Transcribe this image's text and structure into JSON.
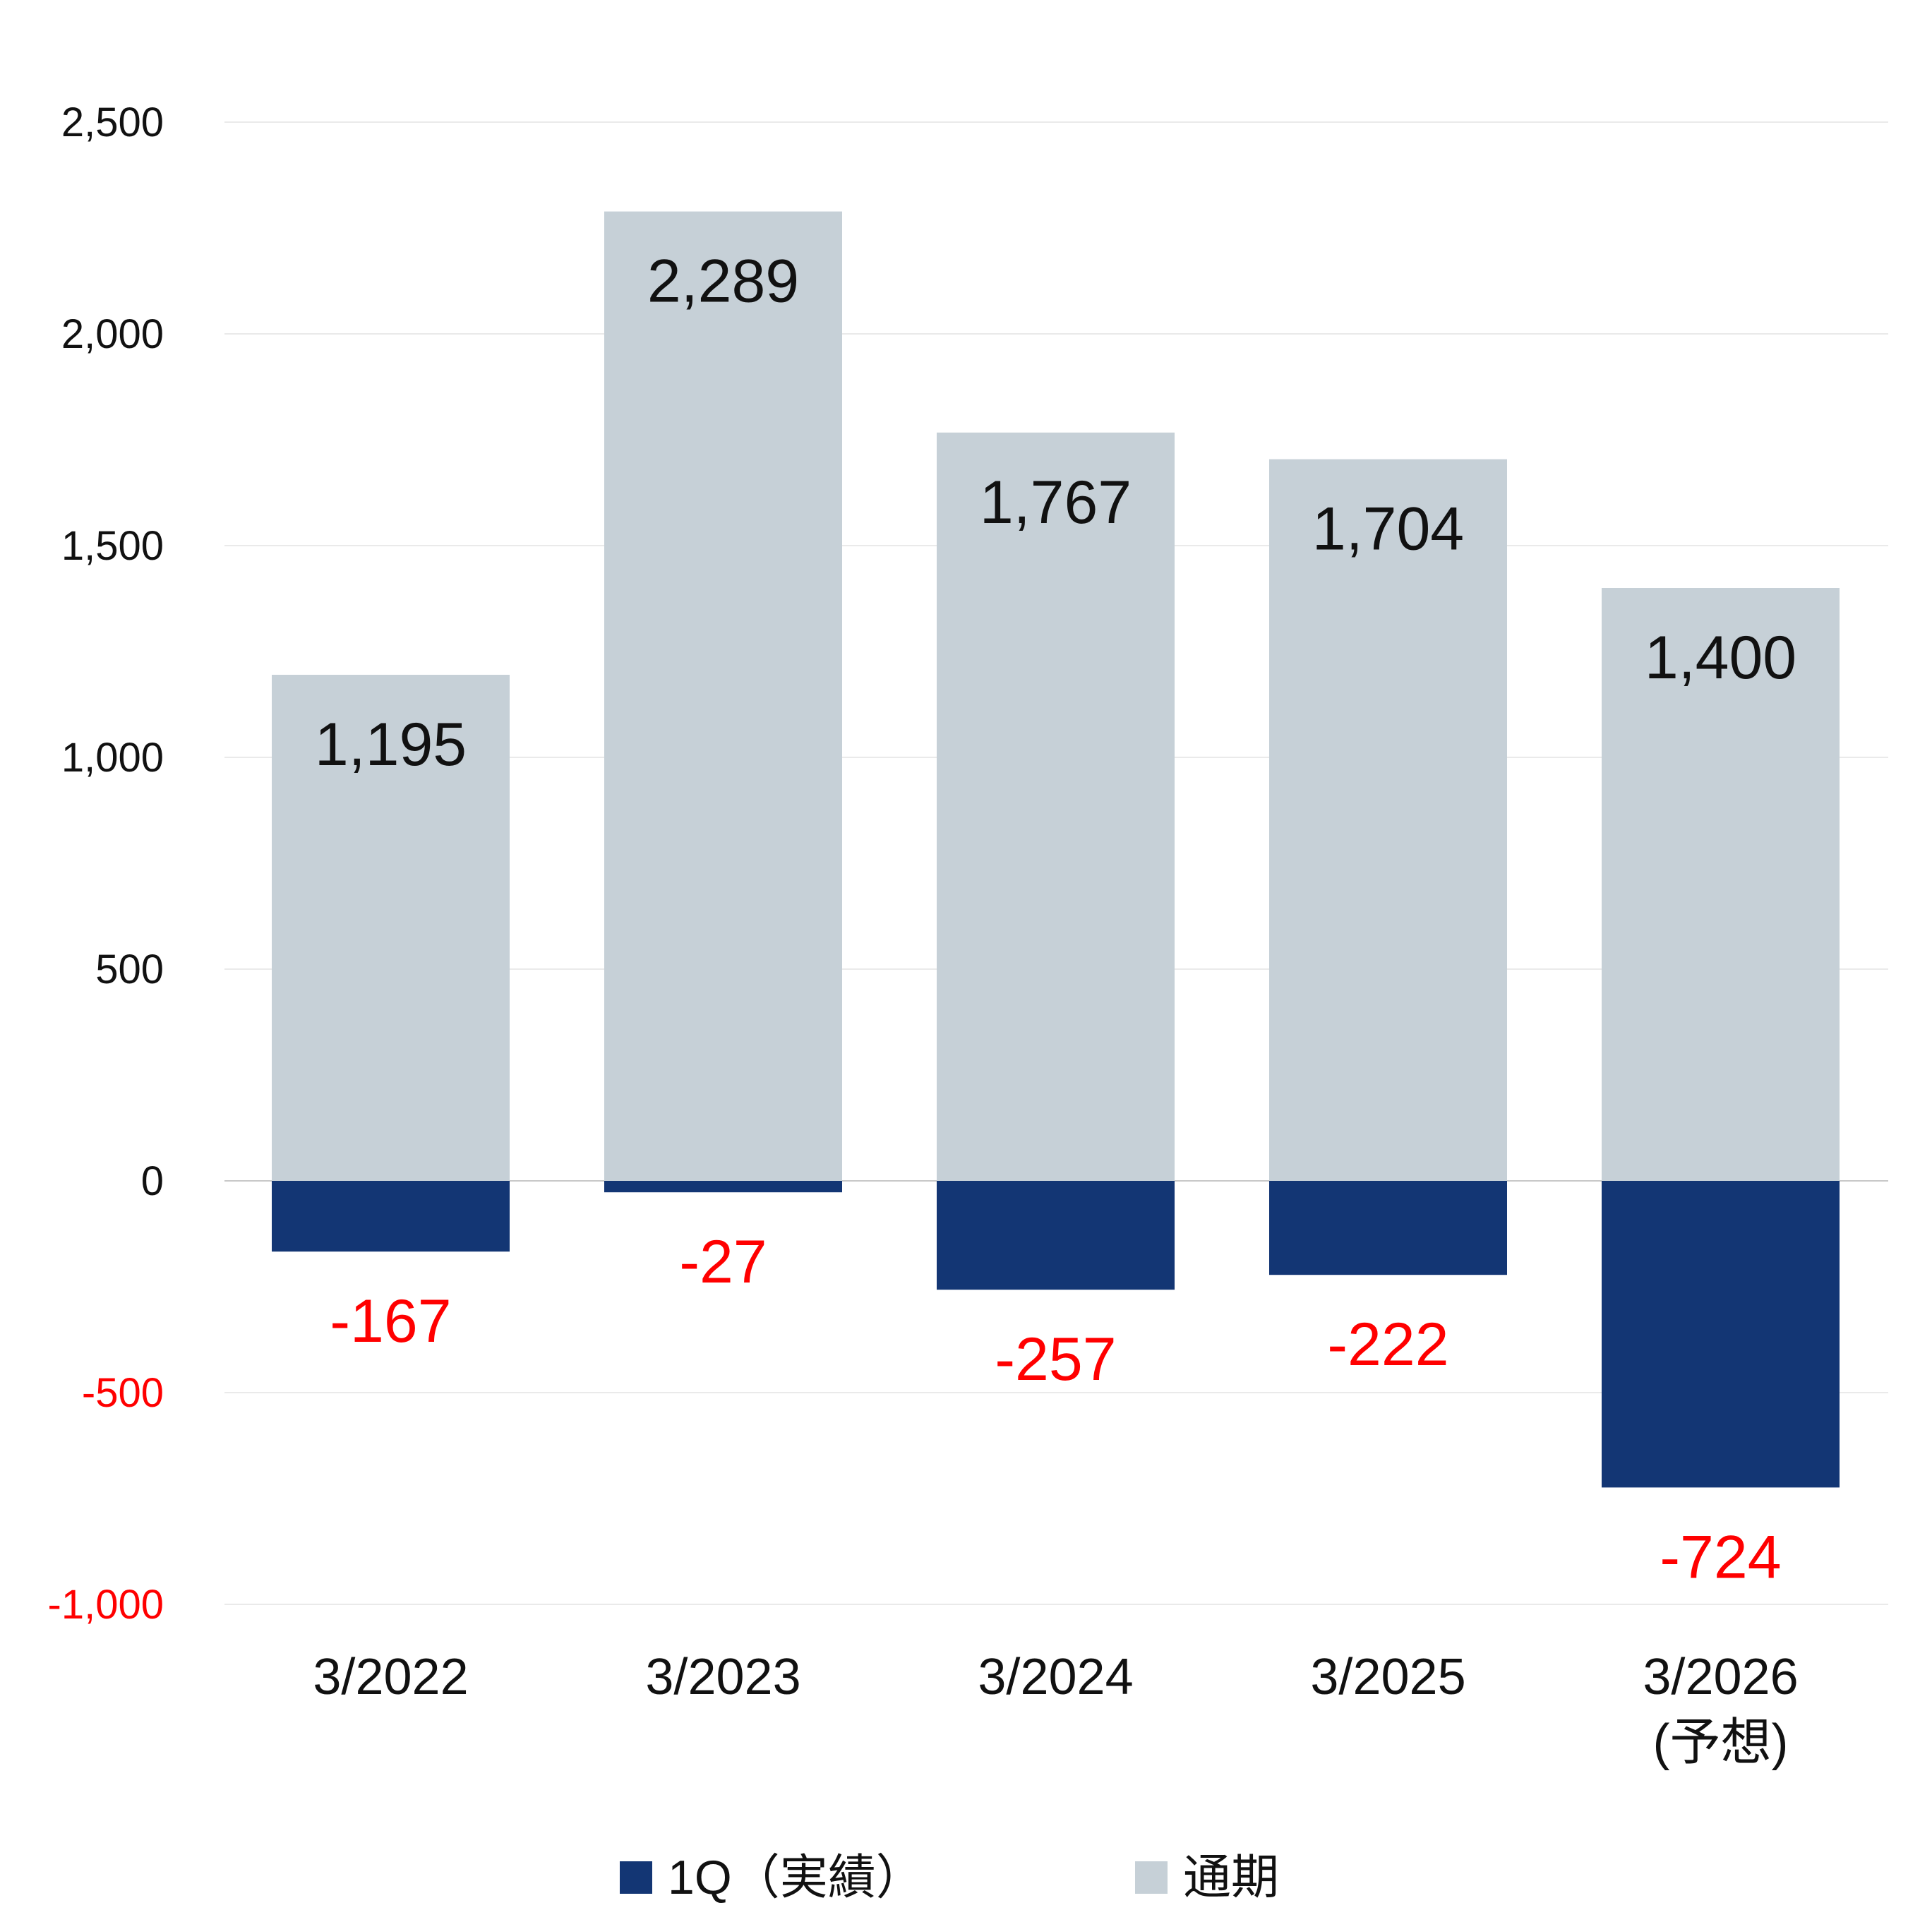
{
  "chart_data": {
    "type": "bar",
    "stacking": "overlap",
    "categories": [
      [
        "3/2022"
      ],
      [
        "3/2023"
      ],
      [
        "3/2024"
      ],
      [
        "3/2025"
      ],
      [
        "3/2026",
        "(予想)"
      ]
    ],
    "series": [
      {
        "name": "通期",
        "values": [
          1195,
          2289,
          1767,
          1704,
          1400
        ],
        "labels": [
          "1,195",
          "2,289",
          "1,767",
          "1,704",
          "1,400"
        ],
        "color": "#c6d0d7",
        "label_color": "#111111"
      },
      {
        "name": "1Q（実績）",
        "values": [
          -167,
          -27,
          -257,
          -222,
          -724
        ],
        "labels": [
          "-167",
          "-27",
          "-257",
          "-222",
          "-724"
        ],
        "color": "#133674",
        "label_color": "#ff0000"
      }
    ],
    "y_ticks": [
      {
        "value": 2500,
        "label": "2,500"
      },
      {
        "value": 2000,
        "label": "2,000"
      },
      {
        "value": 1500,
        "label": "1,500"
      },
      {
        "value": 1000,
        "label": "1,000"
      },
      {
        "value": 500,
        "label": "500"
      },
      {
        "value": 0,
        "label": "0"
      },
      {
        "value": -500,
        "label": "-500"
      },
      {
        "value": -1000,
        "label": "-1,000"
      }
    ],
    "tick_colors": {
      "positive": "#111111",
      "negative": "#ff0000"
    },
    "ylim": [
      -1000,
      2500
    ],
    "grid": true,
    "grid_color": "#e3e3e3",
    "zero_line_color": "#c8c8c8",
    "legend": {
      "position": "bottom",
      "items": [
        {
          "label": "1Q（実績）",
          "color": "#133674"
        },
        {
          "label": "通期",
          "color": "#c6d0d7"
        }
      ]
    },
    "title": "",
    "xlabel": "",
    "ylabel": ""
  }
}
